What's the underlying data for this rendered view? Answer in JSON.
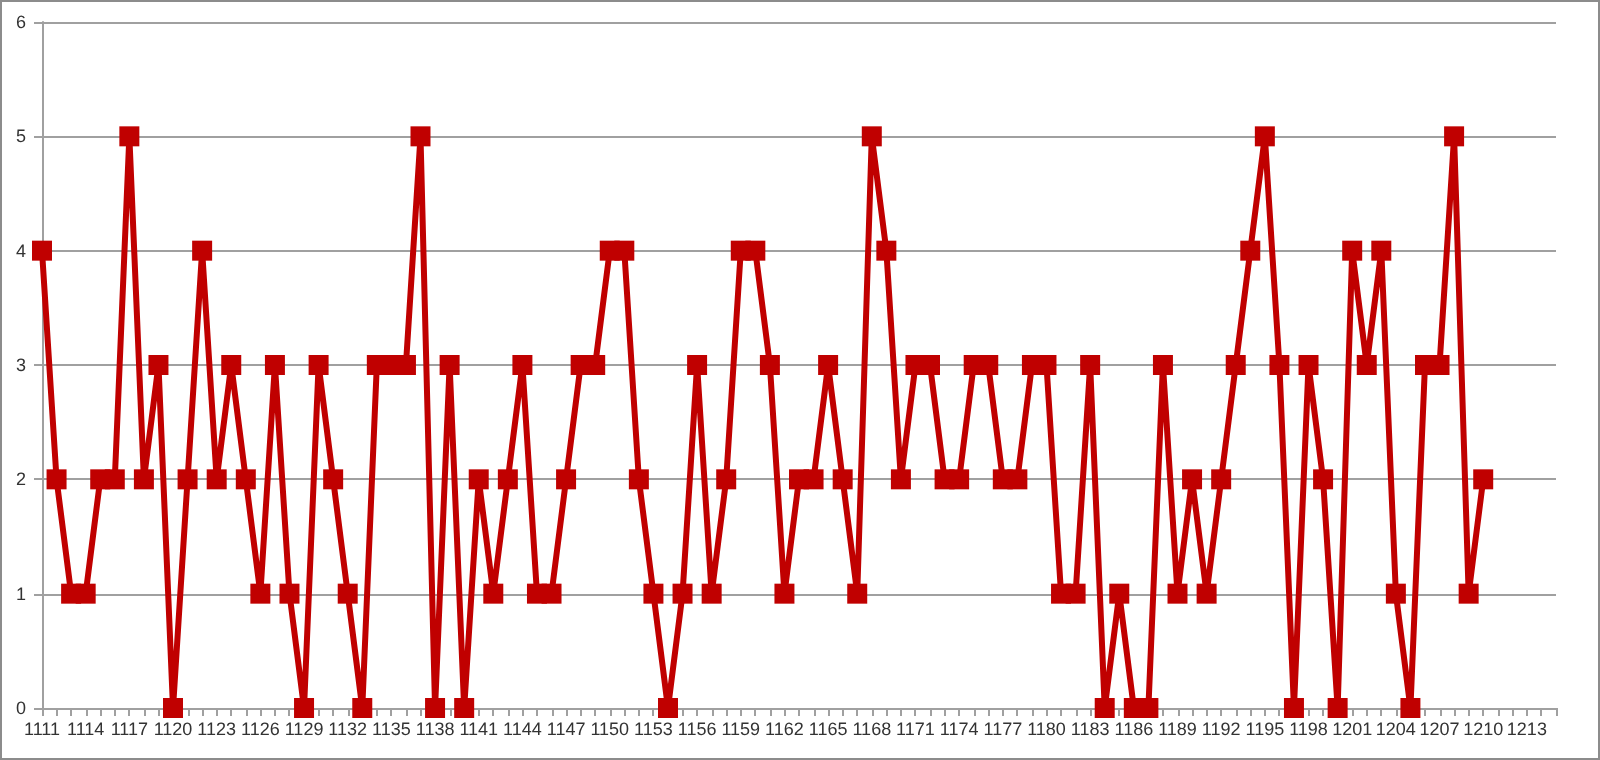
{
  "chart_data": {
    "type": "line",
    "categories": [
      "1111",
      null,
      null,
      "1114",
      null,
      null,
      "1117",
      null,
      null,
      "1120",
      null,
      null,
      "1123",
      null,
      null,
      "1126",
      null,
      null,
      "1129",
      null,
      null,
      "1132",
      null,
      null,
      "1135",
      null,
      null,
      "1138",
      null,
      null,
      "1141",
      null,
      null,
      "1144",
      null,
      null,
      "1147",
      null,
      null,
      "1150",
      null,
      null,
      "1153",
      null,
      null,
      "1156",
      null,
      null,
      "1159",
      null,
      null,
      "1162",
      null,
      null,
      "1165",
      null,
      null,
      "1168",
      null,
      null,
      "1171",
      null,
      null,
      "1174",
      null,
      null,
      "1177",
      null,
      null,
      "1180",
      null,
      null,
      "1183",
      null,
      null,
      "1186",
      null,
      null,
      "1189",
      null,
      null,
      "1192",
      null,
      null,
      "1195",
      null,
      null,
      "1198",
      null,
      null,
      "1201",
      null,
      null,
      "1204",
      null,
      null,
      "1207",
      null,
      null,
      "1210",
      null,
      null,
      "1213",
      null,
      null
    ],
    "values": [
      4,
      2,
      1,
      1,
      2,
      2,
      5,
      2,
      3,
      0,
      2,
      4,
      2,
      3,
      2,
      1,
      3,
      1,
      0,
      3,
      2,
      1,
      0,
      3,
      3,
      3,
      5,
      0,
      3,
      0,
      2,
      1,
      2,
      3,
      1,
      1,
      2,
      3,
      3,
      4,
      4,
      2,
      1,
      0,
      1,
      3,
      1,
      2,
      4,
      4,
      3,
      1,
      2,
      2,
      3,
      2,
      1,
      5,
      4,
      2,
      3,
      3,
      2,
      2,
      3,
      3,
      2,
      2,
      3,
      3,
      1,
      1,
      3,
      0,
      1,
      0,
      0,
      3,
      1,
      2,
      1,
      2,
      3,
      4,
      5,
      3,
      0,
      3,
      2,
      0,
      4,
      3,
      4,
      1,
      0,
      3,
      3,
      5,
      1,
      2,
      null,
      null,
      null,
      null,
      null
    ],
    "color": "#c00000",
    "ylim": [
      0,
      6
    ],
    "yticks": [
      0,
      1,
      2,
      3,
      4,
      5,
      6
    ],
    "grid": "y",
    "marker": "square",
    "line_style": "solid"
  }
}
